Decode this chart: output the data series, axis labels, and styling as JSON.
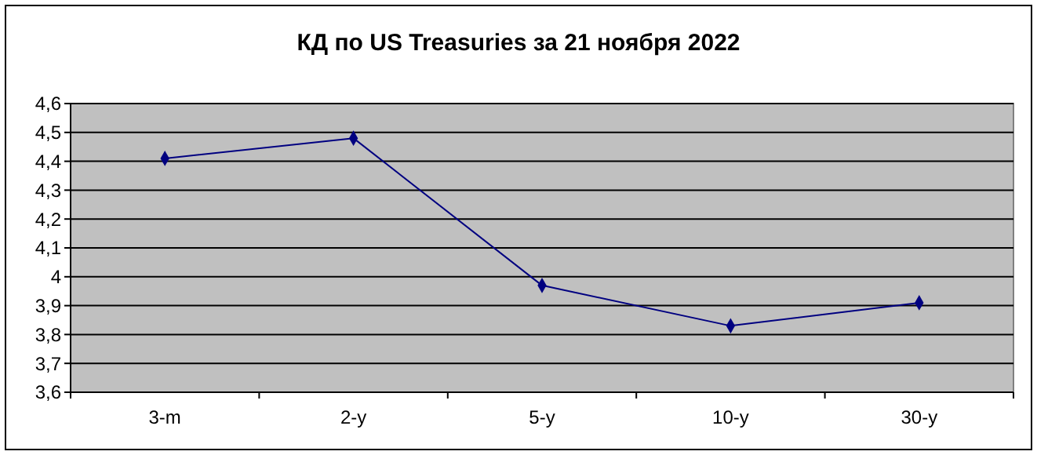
{
  "chart_data": {
    "type": "line",
    "title": "КД по US Treasuries за 21 ноября 2022",
    "categories": [
      "3-m",
      "2-y",
      "5-y",
      "10-y",
      "30-y"
    ],
    "series": [
      {
        "color": "#000080",
        "values": [
          4.41,
          4.48,
          3.97,
          3.83,
          3.91
        ]
      }
    ],
    "ylim": [
      3.6,
      4.6
    ],
    "yticks": [
      {
        "value": 3.6,
        "label": "3,6"
      },
      {
        "value": 3.7,
        "label": "3,7"
      },
      {
        "value": 3.8,
        "label": "3,8"
      },
      {
        "value": 3.9,
        "label": "3,9"
      },
      4,
      {
        "value": 4.1,
        "label": "4,1"
      },
      {
        "value": 4.2,
        "label": "4,2"
      },
      {
        "value": 4.3,
        "label": "4,3"
      },
      {
        "value": 4.4,
        "label": "4,4"
      },
      {
        "value": 4.5,
        "label": "4,5"
      },
      {
        "value": 4.6,
        "label": "4,6"
      }
    ],
    "grid": "y",
    "marker": "diamond",
    "line_style": "solid"
  }
}
